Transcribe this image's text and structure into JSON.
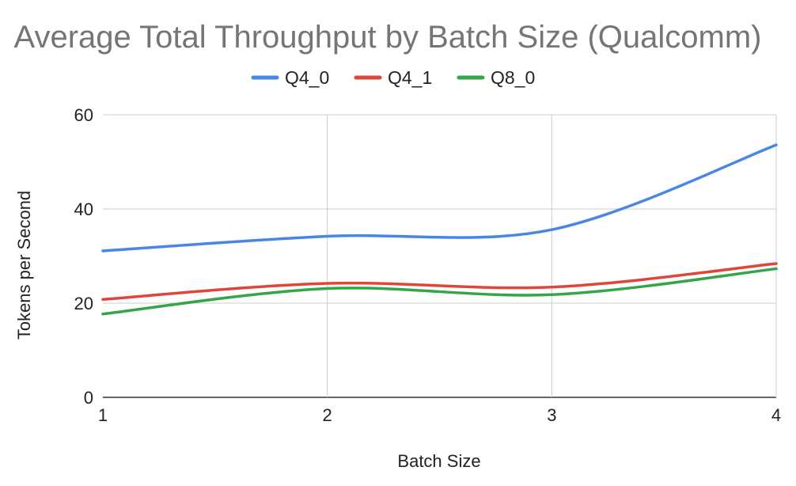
{
  "chart_data": {
    "type": "line",
    "title": "Average Total Throughput by Batch Size (Qualcomm)",
    "xlabel": "Batch Size",
    "ylabel": "Tokens per Second",
    "categories": [
      "1",
      "2",
      "3",
      "4"
    ],
    "x": [
      1,
      2,
      3,
      4
    ],
    "xlim": [
      1,
      4
    ],
    "ylim": [
      0,
      60
    ],
    "yticks": [
      0,
      20,
      40,
      60
    ],
    "grid": true,
    "smooth": true,
    "legend_position": "top",
    "series": [
      {
        "name": "Q4_0",
        "color": "#4a86e8",
        "values": [
          31.1,
          34.2,
          35.6,
          53.6
        ]
      },
      {
        "name": "Q4_1",
        "color": "#df4638",
        "values": [
          20.8,
          24.2,
          23.4,
          28.4
        ]
      },
      {
        "name": "Q8_0",
        "color": "#35a54a",
        "values": [
          17.7,
          23.1,
          21.8,
          27.3
        ]
      }
    ]
  }
}
